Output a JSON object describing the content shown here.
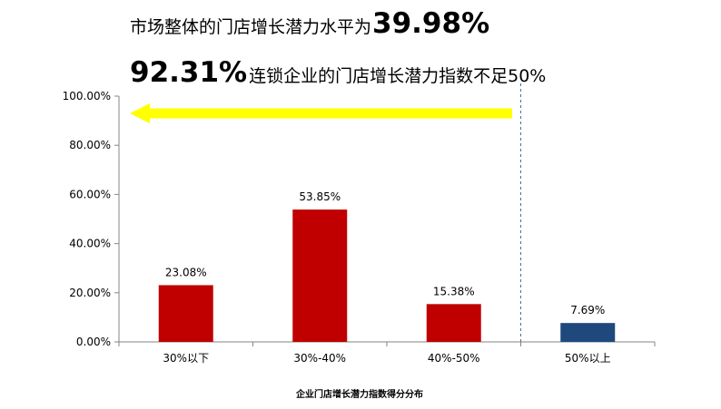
{
  "headline": {
    "line1_text": "市场整体的门店增长潜力水平为",
    "line1_value": "39.98%",
    "line2_value": "92.31%",
    "line2_text": "连锁企业的门店增长潜力指数不足50%"
  },
  "colors": {
    "bar_red": "#C00000",
    "bar_blue": "#1F497D",
    "arrow_yellow": "#FFFF00",
    "divider_blue": "#4F6B9A"
  },
  "chart_data": {
    "type": "bar",
    "title": "",
    "xlabel": "企业门店增长潜力指数得分分布",
    "ylabel": "",
    "ylim": [
      0,
      100
    ],
    "yticks": [
      "0.00%",
      "20.00%",
      "40.00%",
      "60.00%",
      "80.00%",
      "100.00%"
    ],
    "categories": [
      "30%以下",
      "30%-40%",
      "40%-50%",
      "50%以上"
    ],
    "values": [
      23.08,
      53.85,
      15.38,
      7.69
    ],
    "value_labels": [
      "23.08%",
      "53.85%",
      "15.38%",
      "7.69%"
    ],
    "bar_colors": [
      "#C00000",
      "#C00000",
      "#C00000",
      "#1F497D"
    ],
    "grid": false,
    "annotations": [
      {
        "type": "dashed-vertical-line",
        "between_categories": [
          "40%-50%",
          "50%以上"
        ]
      },
      {
        "type": "arrow",
        "direction": "left",
        "color": "#FFFF00"
      }
    ]
  }
}
